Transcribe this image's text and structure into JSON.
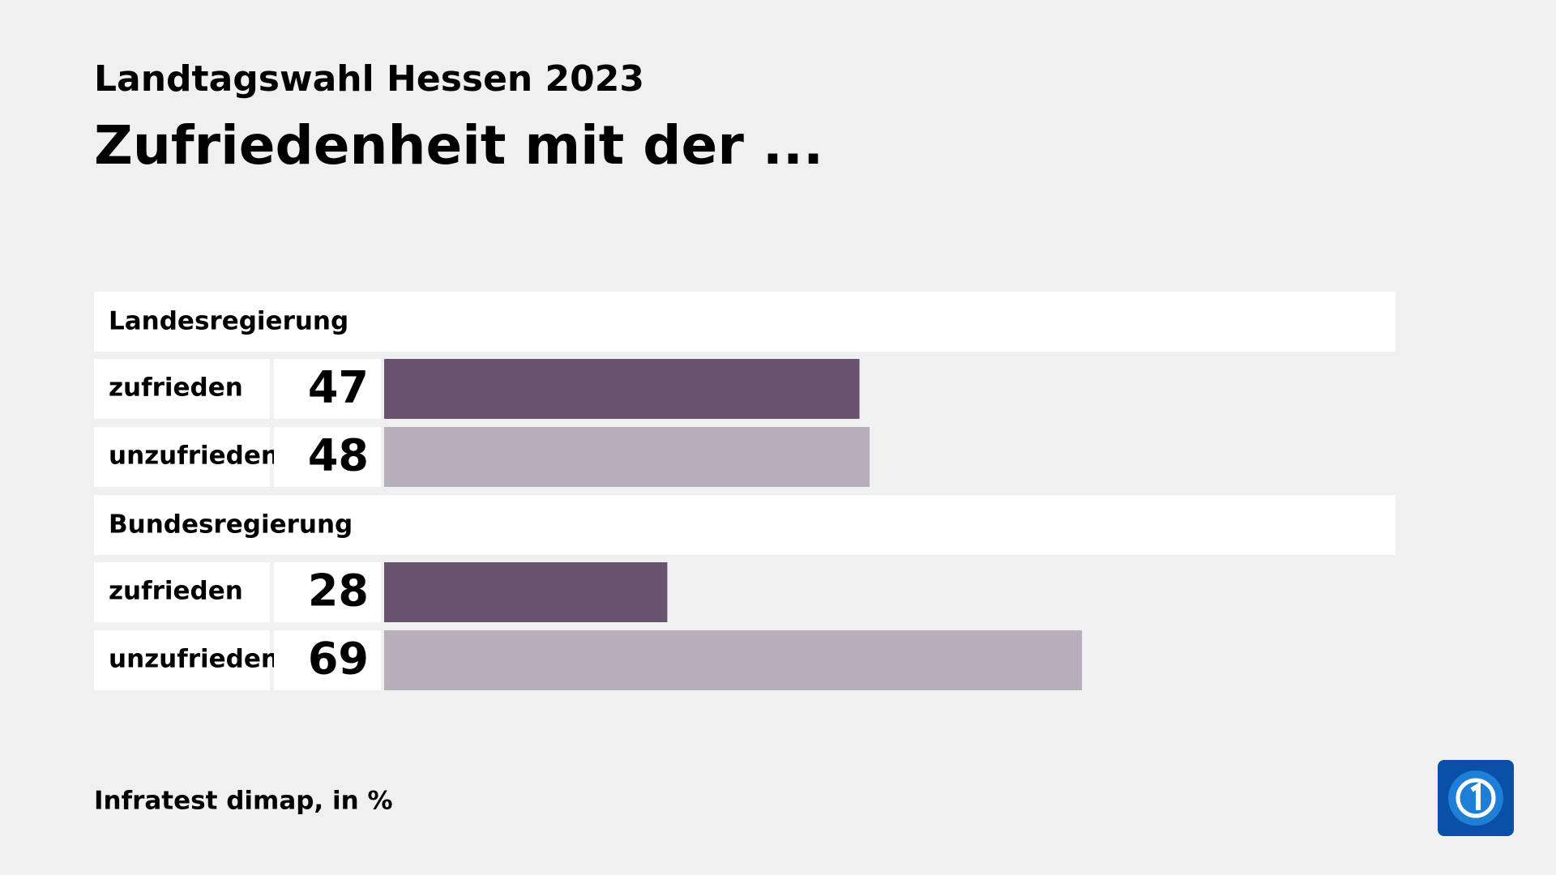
{
  "chart_data": {
    "type": "grouped-hbar",
    "subtitle": "Landtagswahl Hessen 2023",
    "title": "Zufriedenheit mit der ...",
    "categories": [
      "Landesregierung",
      "Bundesregierung"
    ],
    "series": [
      {
        "name": "zufrieden",
        "color": "#68546f",
        "values": [
          47,
          28
        ]
      },
      {
        "name": "unzufrieden",
        "color": "#b7afbb",
        "values": [
          48,
          69
        ]
      }
    ],
    "source": "Infratest dimap, in %"
  }
}
